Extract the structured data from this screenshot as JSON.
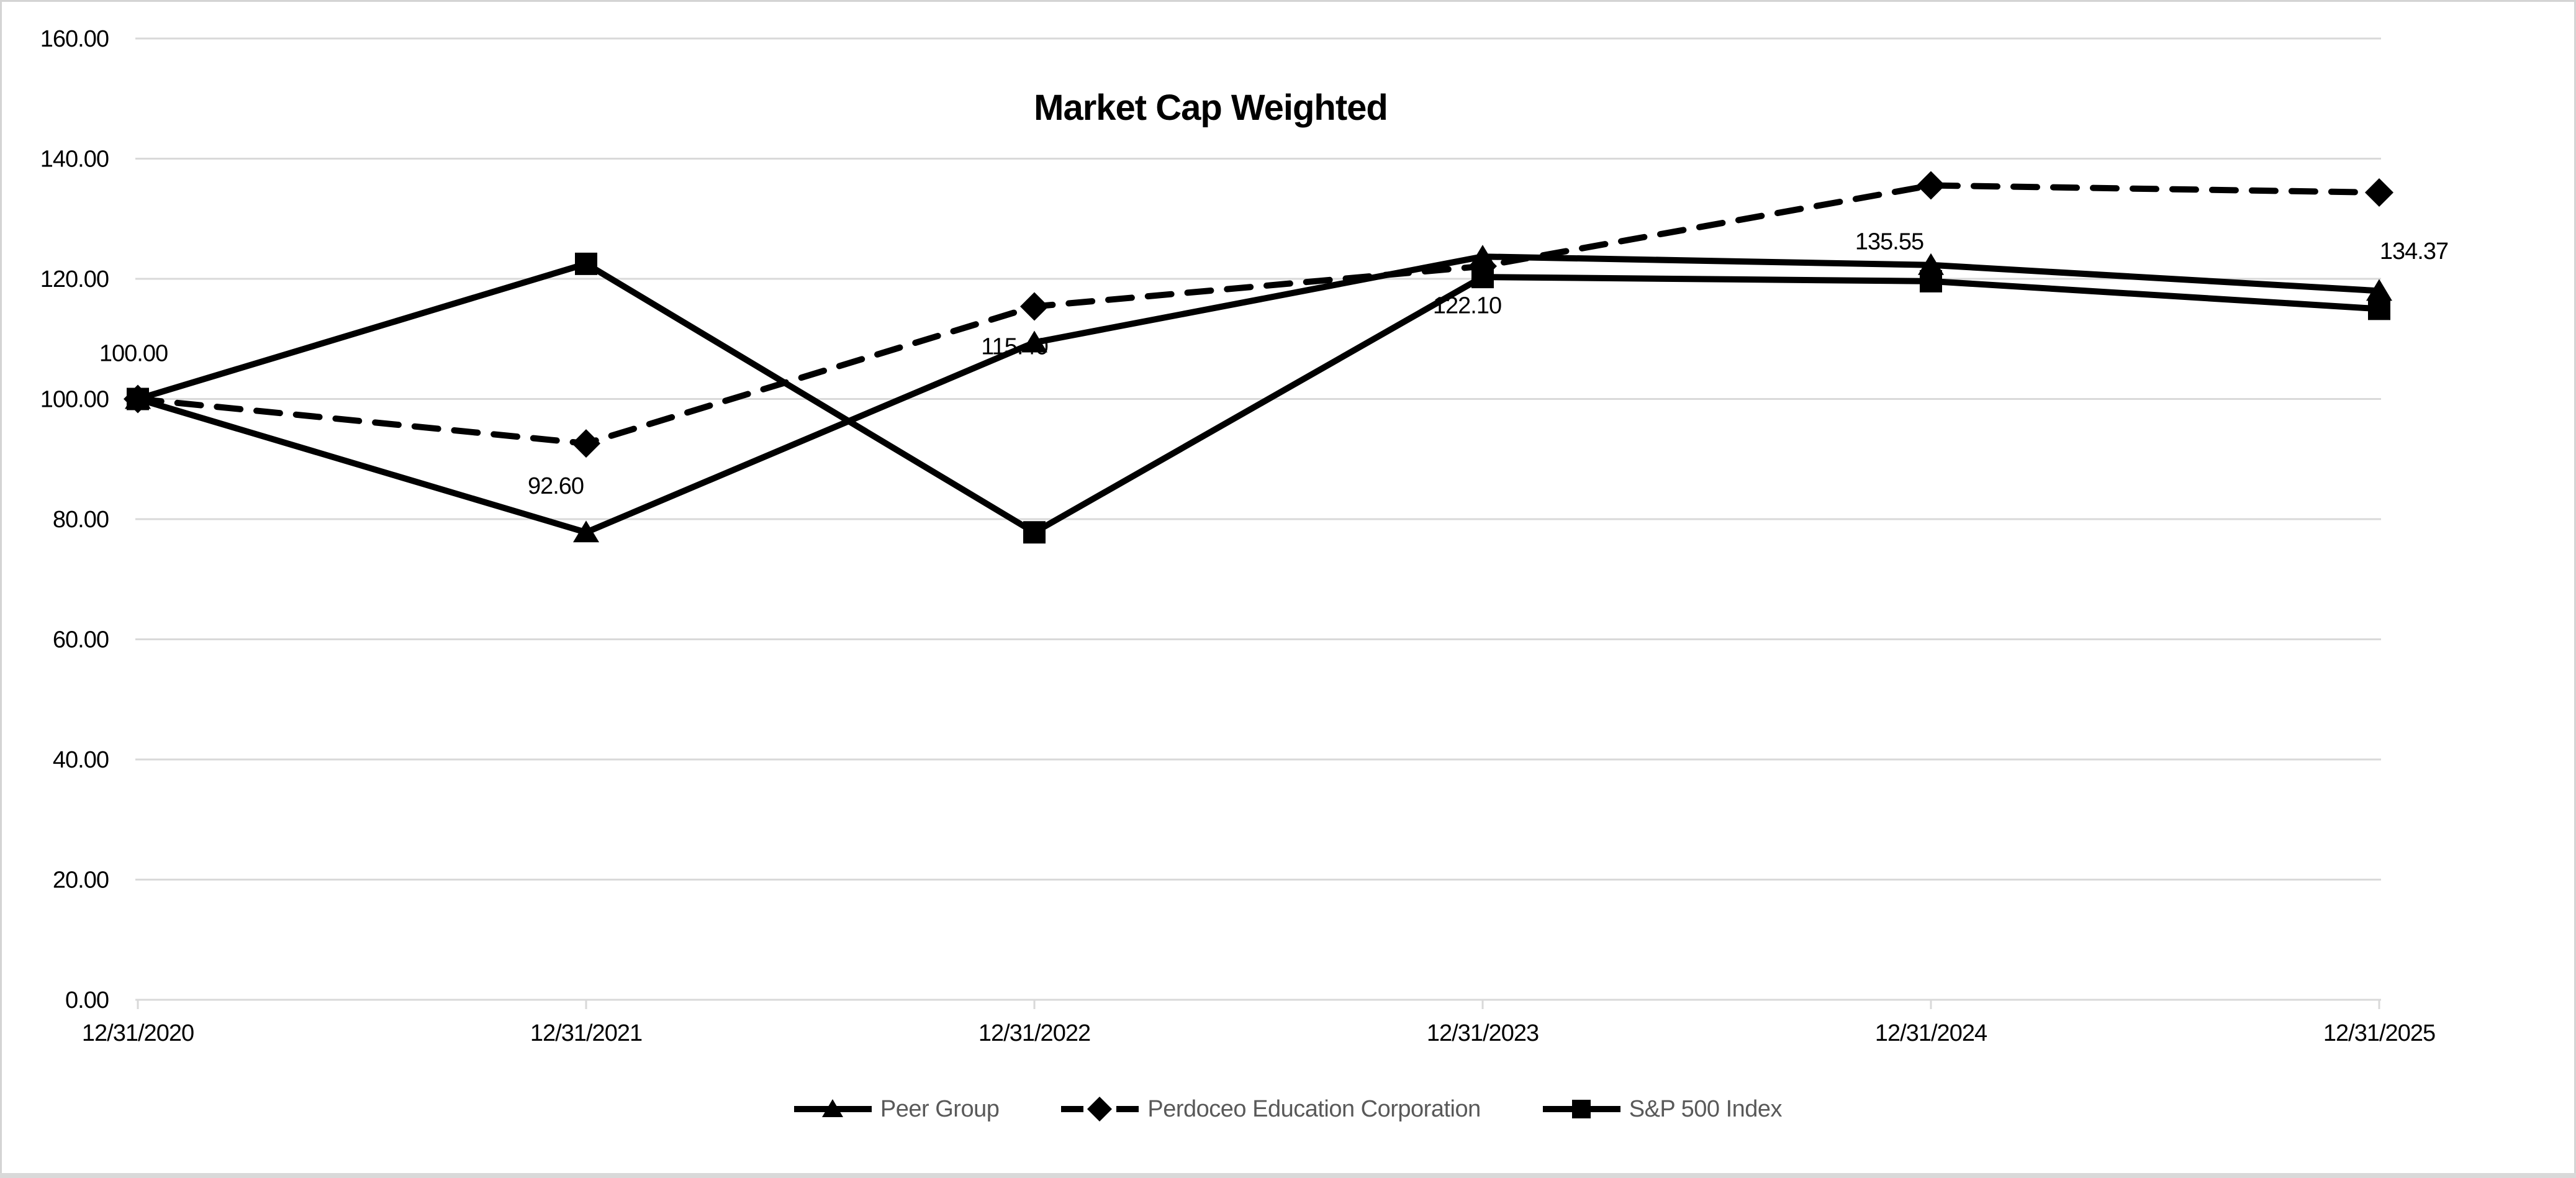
{
  "title": "Market Cap Weighted",
  "chart_data": {
    "type": "line",
    "categories": [
      "12/31/2020",
      "12/31/2021",
      "12/31/2022",
      "12/31/2023",
      "12/31/2024",
      "12/31/2025"
    ],
    "series": [
      {
        "name": "Peer Group",
        "marker": "triangle",
        "line_style": "solid",
        "color": "#000000",
        "values": [
          100.0,
          77.8,
          109.4,
          123.7,
          122.3,
          118.0
        ]
      },
      {
        "name": "Perdoceo Education Corporation",
        "marker": "diamond",
        "line_style": "dashed",
        "color": "#000000",
        "values": [
          100.0,
          92.6,
          115.4,
          122.1,
          135.55,
          134.37
        ],
        "data_labels": [
          "100.00",
          "92.60",
          "115.40",
          "122.10",
          "135.55",
          "134.37"
        ]
      },
      {
        "name": "S&P 500 Index",
        "marker": "square",
        "line_style": "solid",
        "color": "#000000",
        "values": [
          100.0,
          122.5,
          77.8,
          120.3,
          119.6,
          115.0
        ]
      }
    ],
    "title": "Market Cap Weighted",
    "xlabel": "",
    "ylabel": "",
    "ylim": [
      0,
      160
    ],
    "ytick_step": 20,
    "ytick_labels": [
      "0.00",
      "20.00",
      "40.00",
      "60.00",
      "80.00",
      "100.00",
      "120.00",
      "140.00",
      "160.00"
    ],
    "grid": true,
    "legend_position": "bottom"
  },
  "colors": {
    "gridline": "#d9d9d9",
    "axis_line": "#d9d9d9",
    "series": "#000000",
    "axis_text": "#000000",
    "data_label_text": "#000000",
    "legend_text": "#595959",
    "border": "#d4d4d4",
    "bottom_strip": "#d9d9d9"
  }
}
